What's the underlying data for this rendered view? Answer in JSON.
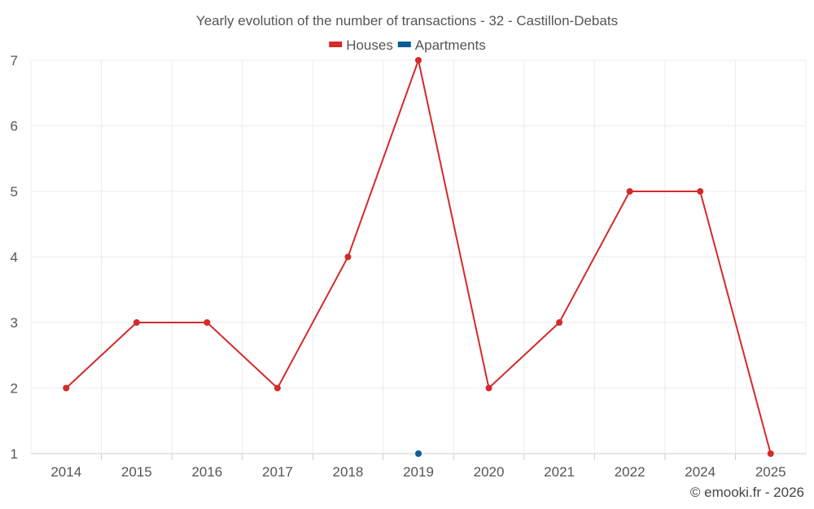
{
  "chart_data": {
    "type": "line",
    "title": "Yearly evolution of the number of transactions - 32 - Castillon-Debats",
    "categories": [
      "2014",
      "2015",
      "2016",
      "2017",
      "2018",
      "2019",
      "2020",
      "2021",
      "2022",
      "2024",
      "2025"
    ],
    "series": [
      {
        "name": "Houses",
        "color": "#d42a2a",
        "values": [
          2,
          3,
          3,
          2,
          4,
          7,
          2,
          3,
          5,
          5,
          1
        ]
      },
      {
        "name": "Apartments",
        "color": "#0b5e93",
        "values": [
          null,
          null,
          null,
          null,
          null,
          1,
          null,
          null,
          null,
          null,
          null
        ]
      }
    ],
    "ylim": [
      1,
      7
    ],
    "yticks": [
      "1",
      "2",
      "3",
      "4",
      "5",
      "6",
      "7"
    ],
    "xlabel": "",
    "ylabel": "",
    "grid": true,
    "legend_position": "top-center"
  },
  "credit": "© emooki.fr - 2026"
}
